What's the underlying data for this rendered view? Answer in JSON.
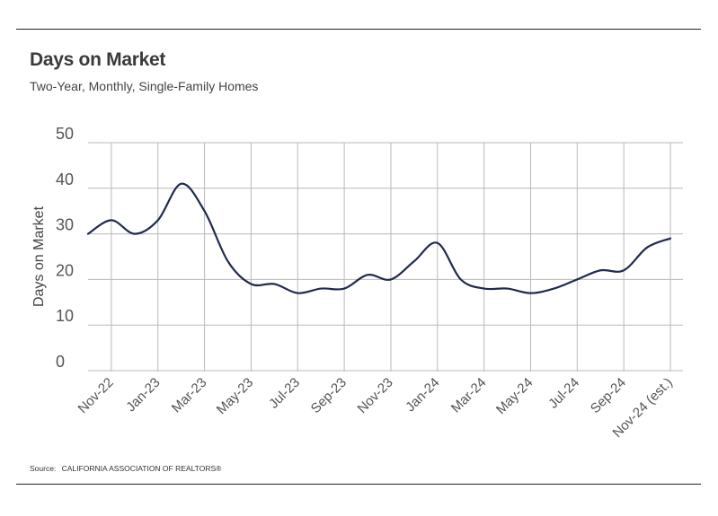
{
  "header": {
    "title": "Days on Market",
    "subtitle": "Two-Year, Monthly, Single-Family Homes"
  },
  "footer": {
    "source_prefix": "Source:",
    "source_text": "CALIFORNIA ASSOCIATION OF REALTORS®"
  },
  "colors": {
    "line": "#1f2a4f",
    "grid": "#b9b9b9"
  },
  "chart_data": {
    "type": "line",
    "title": "Days on Market",
    "subtitle": "Two-Year, Monthly, Single-Family Homes",
    "xlabel": "",
    "ylabel": "Days on Market",
    "ylim": [
      0,
      50
    ],
    "yticks": [
      0,
      10,
      20,
      30,
      40,
      50
    ],
    "grid": true,
    "legend": "none",
    "x": [
      "Oct-22",
      "Nov-22",
      "Dec-22",
      "Jan-23",
      "Feb-23",
      "Mar-23",
      "Apr-23",
      "May-23",
      "Jun-23",
      "Jul-23",
      "Aug-23",
      "Sep-23",
      "Oct-23",
      "Nov-23",
      "Dec-23",
      "Jan-24",
      "Feb-24",
      "Mar-24",
      "Apr-24",
      "May-24",
      "Jun-24",
      "Jul-24",
      "Aug-24",
      "Sep-24",
      "Oct-24",
      "Nov-24 (est.)"
    ],
    "x_tick_labels": [
      "Nov-22",
      "Jan-23",
      "Mar-23",
      "May-23",
      "Jul-23",
      "Sep-23",
      "Nov-23",
      "Jan-24",
      "Mar-24",
      "May-24",
      "Jul-24",
      "Sep-24",
      "Nov-24 (est.)"
    ],
    "series": [
      {
        "values": [
          30,
          33,
          30,
          33,
          41,
          35,
          24,
          19,
          19,
          17,
          18,
          18,
          21,
          20,
          24,
          28,
          20,
          18,
          18,
          17,
          18,
          20,
          22,
          22,
          27,
          29
        ]
      }
    ]
  }
}
